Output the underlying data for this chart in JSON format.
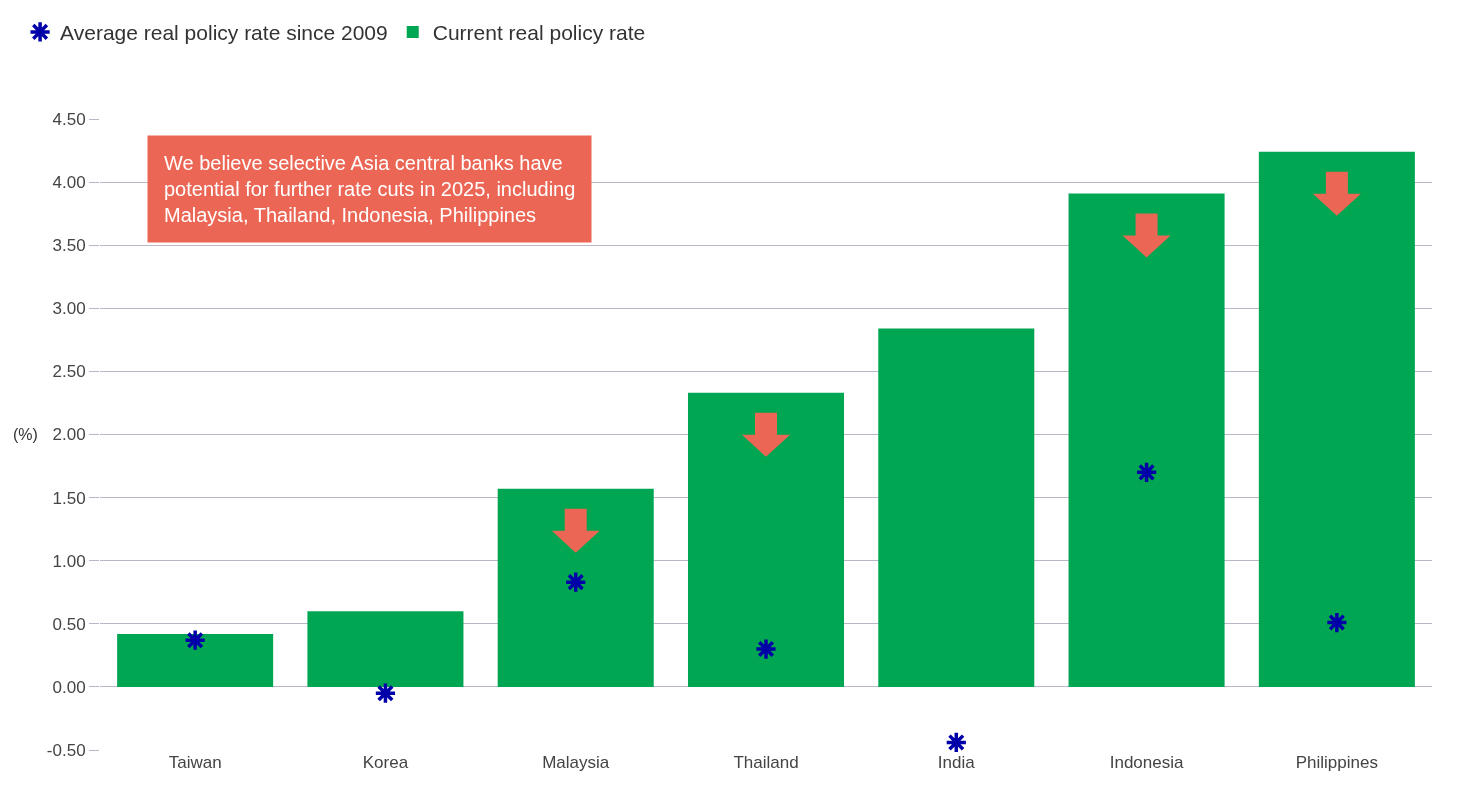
{
  "chart_data": {
    "type": "bar",
    "ylabel": "(%)",
    "categories": [
      "Taiwan",
      "Korea",
      "Malaysia",
      "Thailand",
      "India",
      "Indonesia",
      "Philippines"
    ],
    "series": [
      {
        "name": "Current real policy rate",
        "color": "#00a651",
        "values": [
          0.42,
          0.6,
          1.57,
          2.33,
          2.84,
          3.91,
          4.24
        ]
      },
      {
        "name": "Average real policy rate since 2009",
        "type": "scatter",
        "color": "#0000a8",
        "marker": "cross",
        "x": [
          "Taiwan",
          "Korea",
          "Malaysia",
          "Thailand",
          "India",
          "Indonesia",
          "Philippines"
        ],
        "values": [
          0.37,
          -0.05,
          0.83,
          0.3,
          -0.44,
          1.7,
          0.51
        ]
      }
    ],
    "annotations": [
      "We believe selective Asia central banks have potential for further rate cuts in 2025, including Malaysia, Thailand, Indonesia, Philippines"
    ],
    "ylim": [
      -0.5,
      4.5
    ],
    "yticks": [
      {
        "value": -0.5,
        "label": "-0.50"
      },
      {
        "value": 0,
        "label": "0.00"
      },
      {
        "value": 0.5,
        "label": "0.50"
      },
      {
        "value": 1,
        "label": "1.00"
      },
      {
        "value": 1.5,
        "label": "1.50"
      },
      {
        "value": 2,
        "label": "2.00"
      },
      {
        "value": 2.5,
        "label": "2.50"
      },
      {
        "value": 3,
        "label": "3.00"
      },
      {
        "value": 3.5,
        "label": "3.50"
      },
      {
        "value": 4,
        "label": "4.00"
      },
      {
        "value": 4.5,
        "label": "4.50"
      }
    ],
    "grid": "y",
    "legend": "top left"
  }
}
